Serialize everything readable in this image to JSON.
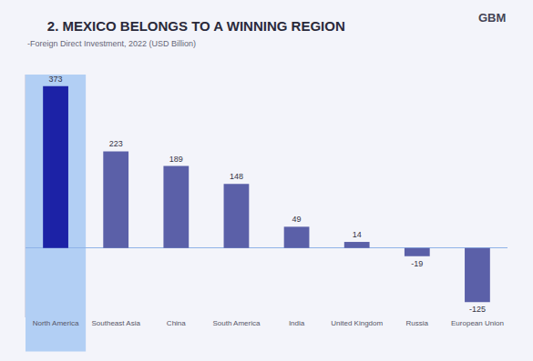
{
  "logo": "GBM",
  "chart_data": {
    "type": "bar",
    "title": "2. MEXICO BELONGS TO A WINNING REGION",
    "subtitle": "-Foreign Direct Investment, 2022 (USD Billion)",
    "categories": [
      "North America",
      "Southeast Asia",
      "China",
      "South America",
      "India",
      "United Kingdom",
      "Russia",
      "European Union"
    ],
    "values": [
      373,
      223,
      189,
      148,
      49,
      14,
      -19,
      -125
    ],
    "colors": [
      "#1c22a6",
      "#5b60a8",
      "#5b60a8",
      "#5b60a8",
      "#5b60a8",
      "#5b60a8",
      "#5b60a8",
      "#5b60a8"
    ],
    "ylim": [
      -160,
      400
    ],
    "data_labels": true,
    "tick_labels": "x",
    "grid": false
  }
}
